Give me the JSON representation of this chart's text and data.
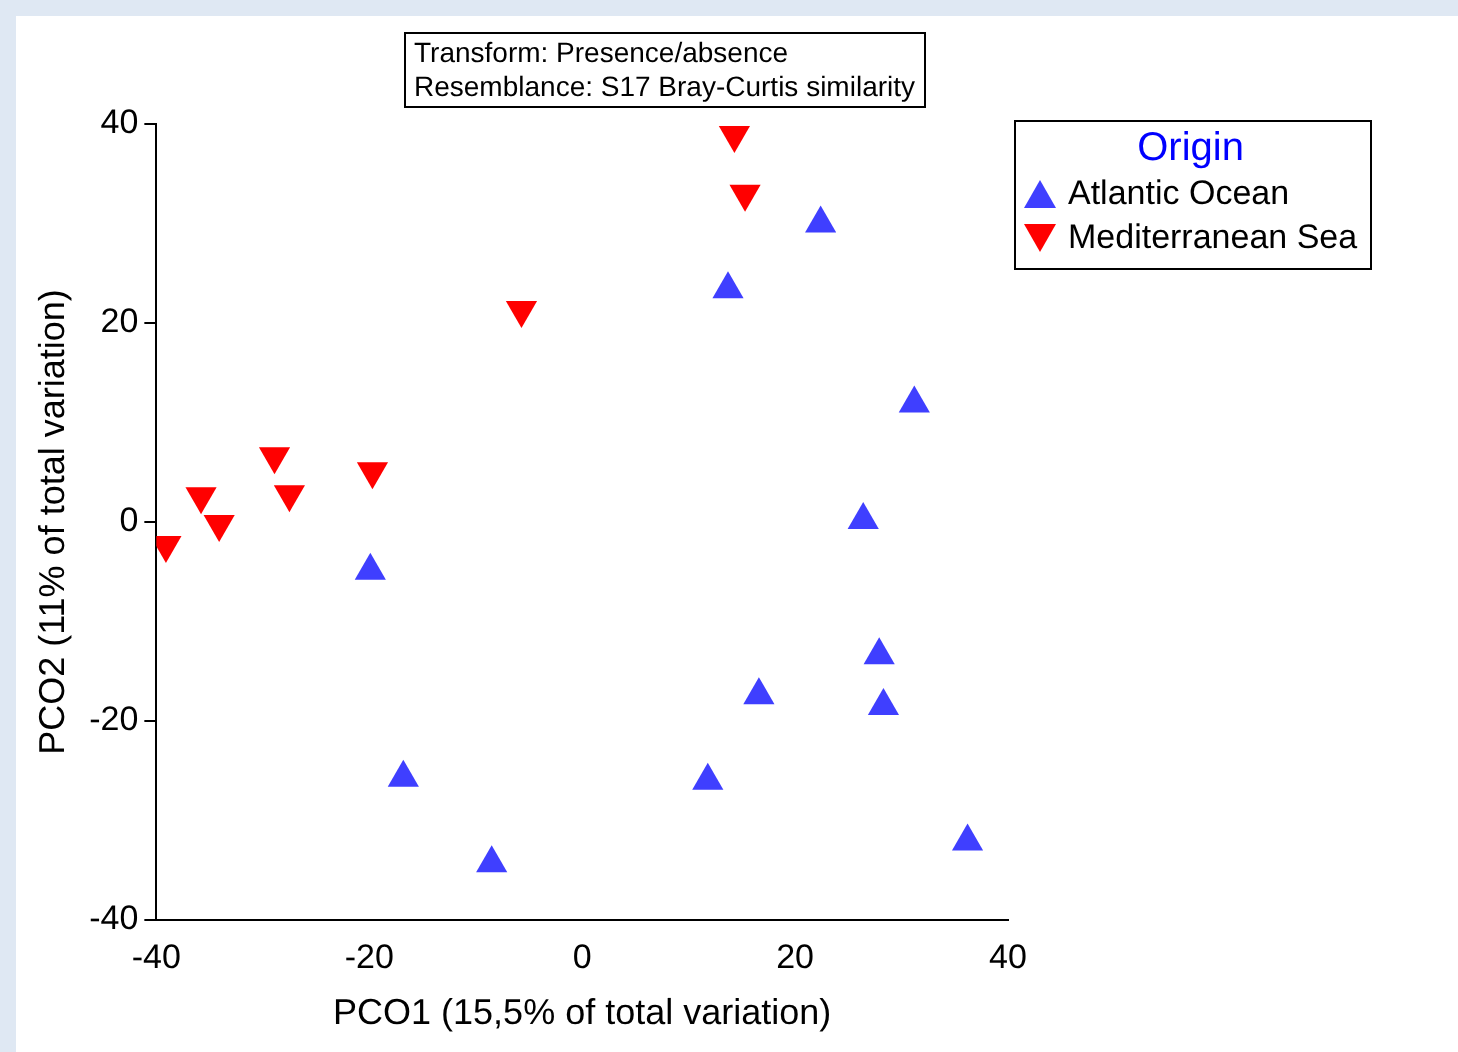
{
  "chart_data": {
    "type": "scatter",
    "xlabel": "PCO1 (15,5% of total variation)",
    "ylabel": "PCO2 (11% of total variation)",
    "legend_title": "Origin",
    "legend": "right",
    "grid": false,
    "annotations": [
      "Transform: Presence/absence",
      "Resemblance: S17 Bray-Curtis similarity"
    ],
    "xlim": [
      -40,
      40
    ],
    "xticks": [
      -40,
      -20,
      0,
      20,
      40
    ],
    "ylim": [
      -40,
      40
    ],
    "yticks": [
      -40,
      -20,
      0,
      20,
      40
    ],
    "series": [
      {
        "name": "Atlantic Ocean",
        "color": "#3f3fff",
        "marker": "triangle",
        "x": [
          -19.9,
          -16.8,
          -8.5,
          11.8,
          16.6,
          13.7,
          22.4,
          31.2,
          26.4,
          27.9,
          28.3,
          36.2
        ],
        "values": [
          -4.9,
          -25.7,
          -34.3,
          -26,
          -17.4,
          23.4,
          30,
          11.9,
          0.2,
          -13.4,
          -18.5,
          -32.1
        ]
      },
      {
        "name": "Mediterranean Sea",
        "color": "#ff0000",
        "marker": "triangle",
        "x": [
          14.3,
          15.3,
          -5.7,
          -28.9,
          -27.5,
          -19.7,
          -35.8,
          -34.1,
          -39.1
        ],
        "values": [
          38.9,
          33,
          21.3,
          6.6,
          2.8,
          5.1,
          2.6,
          -0.2,
          -2.3
        ]
      }
    ]
  }
}
